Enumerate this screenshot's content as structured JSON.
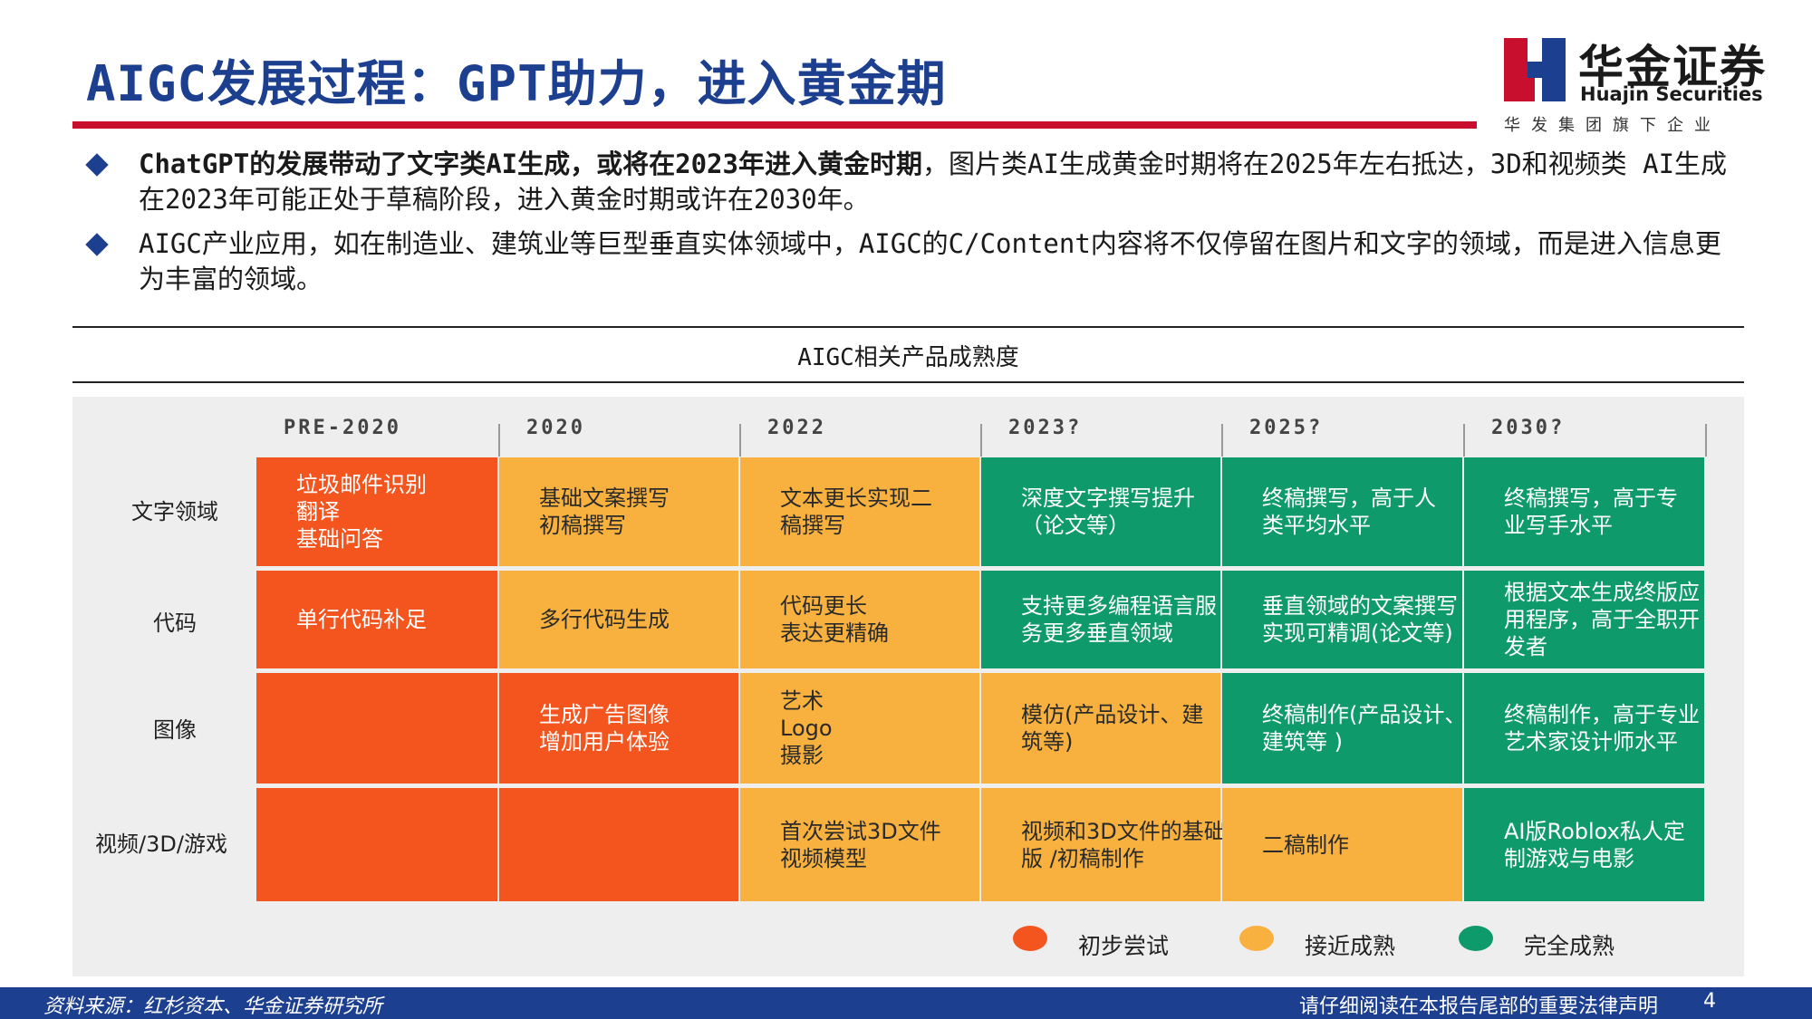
{
  "header": {
    "title": "AIGC发展过程：GPT助力，进入黄金期",
    "logo": {
      "name_cn": "华金证券",
      "name_en": "Huajin Securities",
      "tagline": "华发集团旗下企业",
      "mark": "huajin-logo-mark"
    }
  },
  "bullets": [
    {
      "bold": "ChatGPT的发展带动了文字类AI生成，或将在2023年进入黄金时期",
      "text": "，图片类AI生成黄金时期将在2025年左右抵达，3D和视频类 AI生成在2023年可能正处于草稿阶段，进入黄金时期或许在2030年。"
    },
    {
      "bold": "",
      "text": "AIGC产业应用，如在制造业、建筑业等巨型垂直实体领域中，AIGC的C/Content内容将不仅停留在图片和文字的领域，而是进入信息更为丰富的领域。"
    }
  ],
  "figure": {
    "caption": "AIGC相关产品成熟度",
    "columns": [
      "PRE-2020",
      "2020",
      "2022",
      "2023?",
      "2025?",
      "2030?"
    ],
    "rows": [
      {
        "label": "文字领域",
        "cells": [
          {
            "status": "orange",
            "lines": [
              "垃圾邮件识别",
              "翻译",
              "基础问答"
            ]
          },
          {
            "status": "yellow",
            "lines": [
              "基础文案撰写",
              "初稿撰写"
            ]
          },
          {
            "status": "yellow",
            "lines": [
              "文本更长实现二",
              "稿撰写"
            ]
          },
          {
            "status": "green",
            "lines": [
              "深度文字撰写提升",
              "（论文等）"
            ]
          },
          {
            "status": "green",
            "lines": [
              "终稿撰写，高于人",
              "类平均水平"
            ]
          },
          {
            "status": "green",
            "lines": [
              "终稿撰写，高于专",
              "业写手水平"
            ]
          }
        ]
      },
      {
        "label": "代码",
        "cells": [
          {
            "status": "orange",
            "lines": [
              "单行代码补足"
            ]
          },
          {
            "status": "yellow",
            "lines": [
              "多行代码生成"
            ]
          },
          {
            "status": "yellow",
            "lines": [
              "代码更长",
              "表达更精确"
            ]
          },
          {
            "status": "green",
            "lines": [
              "支持更多编程语言服",
              "务更多垂直领域"
            ]
          },
          {
            "status": "green",
            "lines": [
              "垂直领域的文案撰写",
              "实现可精调(论文等)"
            ]
          },
          {
            "status": "green",
            "lines": [
              "根据文本生成终版应",
              "用程序，高于全职开",
              "发者"
            ]
          }
        ]
      },
      {
        "label": "图像",
        "cells": [
          {
            "status": "orange",
            "lines": []
          },
          {
            "status": "orange",
            "lines": [
              "生成广告图像",
              "增加用户体验"
            ]
          },
          {
            "status": "yellow",
            "lines": [
              "艺术",
              "Logo",
              "摄影"
            ]
          },
          {
            "status": "yellow",
            "lines": [
              "模仿(产品设计、建",
              "筑等)"
            ]
          },
          {
            "status": "green",
            "lines": [
              "终稿制作(产品设计、",
              "建筑等 )"
            ]
          },
          {
            "status": "green",
            "lines": [
              "终稿制作，高于专业",
              "艺术家设计师水平"
            ]
          }
        ]
      },
      {
        "label": "视频/3D/游戏",
        "cells": [
          {
            "status": "orange",
            "lines": []
          },
          {
            "status": "orange",
            "lines": []
          },
          {
            "status": "yellow",
            "lines": [
              "首次尝试3D文件",
              "视频模型"
            ]
          },
          {
            "status": "yellow",
            "lines": [
              "视频和3D文件的基础",
              "版 /初稿制作"
            ]
          },
          {
            "status": "yellow",
            "lines": [
              "二稿制作"
            ]
          },
          {
            "status": "green",
            "lines": [
              "AI版Roblox私人定",
              "制游戏与电影"
            ]
          }
        ]
      }
    ],
    "legend": [
      {
        "key": "orange",
        "label": "初步尝试",
        "color": "#f4551f"
      },
      {
        "key": "yellow",
        "label": "接近成熟",
        "color": "#f8b13e"
      },
      {
        "key": "green",
        "label": "完全成熟",
        "color": "#0f9a6b"
      }
    ]
  },
  "footer": {
    "source": "资料来源：红杉资本、华金证券研究所",
    "legal": "请仔细阅读在本报告尾部的重要法律声明",
    "page": "4"
  }
}
